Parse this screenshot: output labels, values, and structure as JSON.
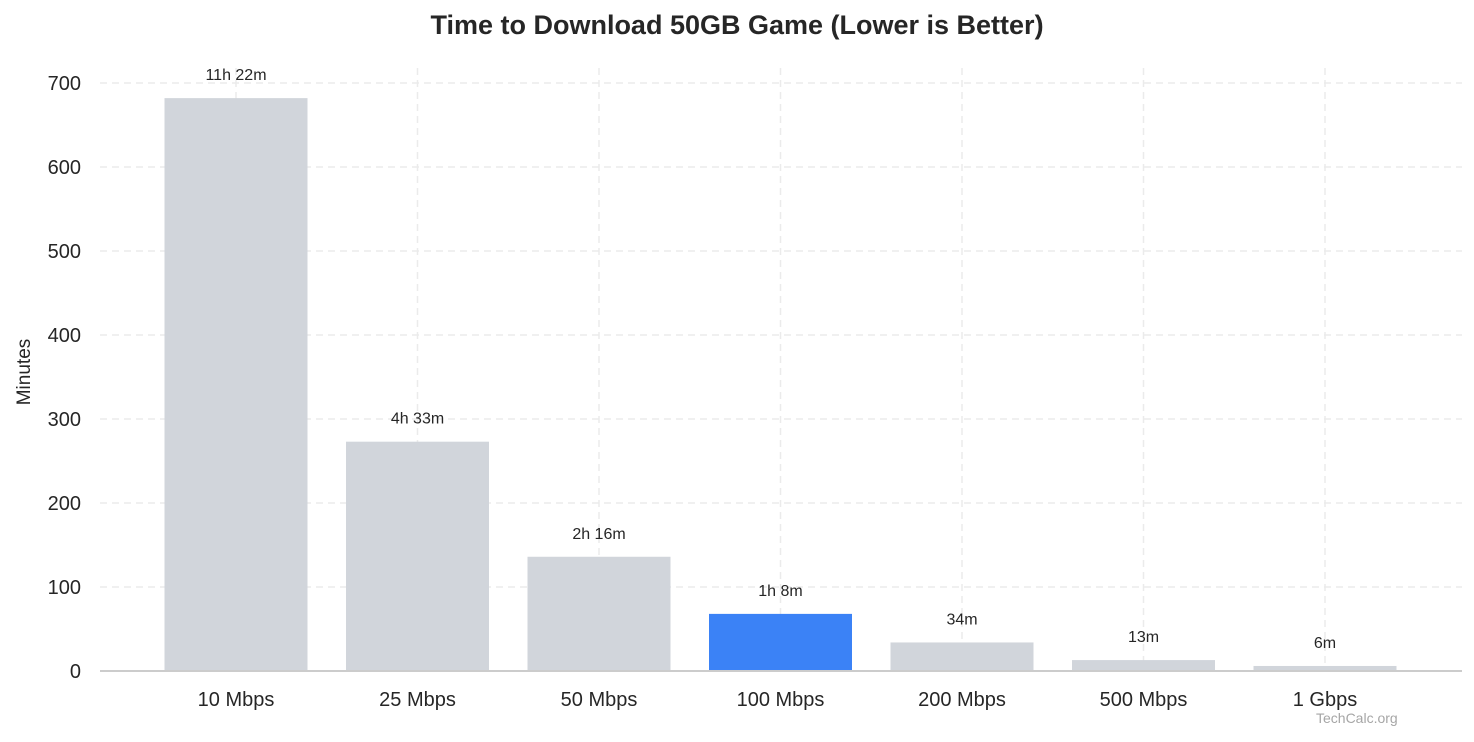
{
  "chart_data": {
    "type": "bar",
    "title": "Time to Download 50GB Game (Lower is Better)",
    "xlabel": "",
    "ylabel": "Minutes",
    "ylim": [
      0,
      700
    ],
    "yticks": [
      0,
      100,
      200,
      300,
      400,
      500,
      600,
      700
    ],
    "grid": true,
    "legend": null,
    "categories": [
      "10 Mbps",
      "25 Mbps",
      "50 Mbps",
      "100 Mbps",
      "200 Mbps",
      "500 Mbps",
      "1 Gbps"
    ],
    "values": [
      682,
      273,
      136,
      68,
      34,
      13,
      6
    ],
    "value_labels": [
      "11h 22m",
      "4h 33m",
      "2h 16m",
      "1h 8m",
      "34m",
      "13m",
      "6m"
    ],
    "colors": [
      "#d1d5db",
      "#d1d5db",
      "#d1d5db",
      "#3b82f6",
      "#d1d5db",
      "#d1d5db",
      "#d1d5db"
    ],
    "highlight_index": 3,
    "watermark": "TechCalc.org"
  },
  "colors": {
    "bar_default": "#d1d5db",
    "bar_highlight": "#3b82f6",
    "grid": "#ebebeb",
    "axis": "#cccccc",
    "text": "#262626",
    "watermark": "#a6a6a6"
  }
}
